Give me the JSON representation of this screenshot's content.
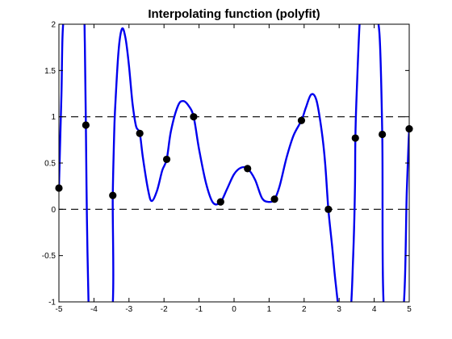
{
  "chart_data": {
    "type": "line",
    "title": "Interpolating function (polyfit)",
    "xlabel": "",
    "ylabel": "",
    "xlim": [
      -5,
      5
    ],
    "ylim": [
      -1,
      2
    ],
    "x_ticks": [
      -5,
      -4,
      -3,
      -2,
      -1,
      0,
      1,
      2,
      3,
      4,
      5
    ],
    "y_ticks": [
      -1,
      -0.5,
      0,
      0.5,
      1,
      1.5,
      2
    ],
    "x_tick_labels": [
      "-5",
      "-4",
      "-3",
      "-2",
      "-1",
      "0",
      "1",
      "2",
      "3",
      "4",
      "5"
    ],
    "y_tick_labels": [
      "-1",
      "-0.5",
      "0",
      "0.5",
      "1",
      "1.5",
      "2"
    ],
    "reference_lines": [
      0,
      1
    ],
    "grid": false,
    "colors": {
      "curve": "#0000ee",
      "points": "#000000",
      "reference": "#000000"
    },
    "series": [
      {
        "kind": "points",
        "x": [
          -5,
          -4.231,
          -3.462,
          -2.692,
          -1.923,
          -1.154,
          -0.385,
          0.385,
          1.154,
          1.923,
          2.692,
          3.462,
          4.231,
          5
        ],
        "y": [
          0.23,
          0.91,
          0.15,
          0.82,
          0.54,
          1.0,
          0.08,
          0.44,
          0.11,
          0.96,
          0.0,
          0.77,
          0.81,
          0.87
        ]
      },
      {
        "kind": "curve",
        "x": [
          -5,
          -4.93,
          -4.85,
          -4.5,
          -4.3,
          -4.26,
          -4.231,
          -4.2,
          -4.15,
          -4.1,
          -4.05,
          -3.5,
          -3.462,
          -3.43,
          -3.4,
          -3.3,
          -3.2,
          -3.1,
          -3.0,
          -2.9,
          -2.8,
          -2.692,
          -2.6,
          -2.45,
          -2.35,
          -2.2,
          -2.05,
          -1.923,
          -1.8,
          -1.6,
          -1.45,
          -1.3,
          -1.154,
          -1.0,
          -0.8,
          -0.6,
          -0.385,
          -0.2,
          0.0,
          0.2,
          0.385,
          0.6,
          0.8,
          1.0,
          1.154,
          1.3,
          1.5,
          1.7,
          1.923,
          2.05,
          2.2,
          2.35,
          2.5,
          2.6,
          2.692,
          2.8,
          2.9,
          3.05,
          3.3,
          3.4,
          3.45,
          3.462,
          3.5,
          3.6,
          3.7,
          3.8,
          3.9,
          4.0,
          4.15,
          4.231,
          4.3,
          4.8,
          4.93,
          4.98,
          5.0
        ],
        "y": [
          0.23,
          1.2,
          2.1,
          2.1,
          2.1,
          1.8,
          0.91,
          -0.1,
          -1.1,
          -1.3,
          -1.3,
          -1.2,
          0.15,
          0.7,
          1.05,
          1.7,
          1.95,
          1.85,
          1.55,
          1.15,
          0.9,
          0.82,
          0.55,
          0.2,
          0.09,
          0.2,
          0.42,
          0.54,
          0.85,
          1.12,
          1.17,
          1.12,
          1.0,
          0.65,
          0.28,
          0.07,
          0.08,
          0.22,
          0.38,
          0.45,
          0.44,
          0.32,
          0.12,
          0.08,
          0.11,
          0.25,
          0.56,
          0.8,
          0.96,
          1.1,
          1.24,
          1.18,
          0.85,
          0.5,
          0.0,
          -0.4,
          -0.8,
          -1.2,
          -1.2,
          -0.5,
          0.2,
          0.77,
          1.25,
          2.1,
          2.1,
          2.1,
          2.1,
          2.1,
          1.9,
          0.81,
          -1.2,
          -1.2,
          0.2,
          0.7,
          0.87
        ]
      }
    ]
  }
}
